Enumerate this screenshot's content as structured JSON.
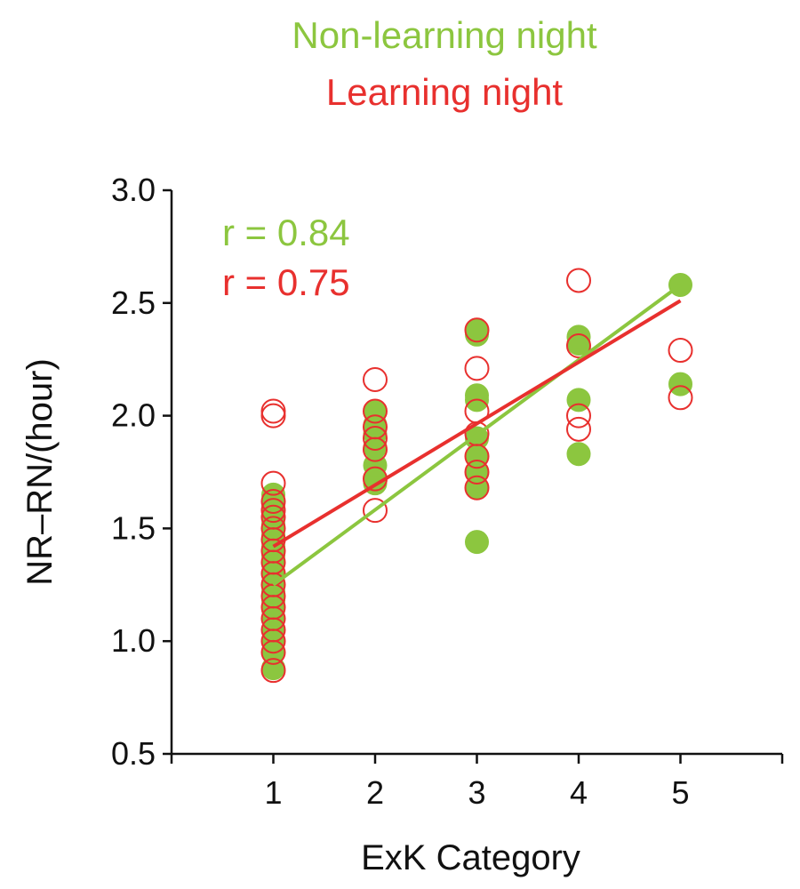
{
  "chart_data": {
    "type": "scatter",
    "title": "",
    "xlabel": "ExK Category",
    "ylabel": "NR–RN/(hour)",
    "xlim": [
      0,
      6
    ],
    "ylim": [
      0.5,
      3.0
    ],
    "xticks": [
      "1",
      "2",
      "3",
      "4",
      "5"
    ],
    "yticks": [
      "0.5",
      "1.0",
      "1.5",
      "2.0",
      "2.5",
      "3.0"
    ],
    "grid": false,
    "legend": {
      "placement": "top-center",
      "entries": [
        {
          "label": "Non-learning night",
          "color": "#8cc63f"
        },
        {
          "label": "Learning night",
          "color": "#e8302e"
        }
      ]
    },
    "annotations": [
      {
        "text": "r = 0.84",
        "color": "#8cc63f"
      },
      {
        "text": "r = 0.75",
        "color": "#e8302e"
      }
    ],
    "series": [
      {
        "name": "Non-learning night",
        "color": "#8cc63f",
        "marker": "filled-circle",
        "points": [
          [
            1,
            0.88
          ],
          [
            1,
            0.95
          ],
          [
            1,
            1.0
          ],
          [
            1,
            1.05
          ],
          [
            1,
            1.1
          ],
          [
            1,
            1.14
          ],
          [
            1,
            1.18
          ],
          [
            1,
            1.22
          ],
          [
            1,
            1.26
          ],
          [
            1,
            1.3
          ],
          [
            1,
            1.34
          ],
          [
            1,
            1.38
          ],
          [
            1,
            1.42
          ],
          [
            1,
            1.47
          ],
          [
            1,
            1.52
          ],
          [
            1,
            1.57
          ],
          [
            1,
            1.6
          ],
          [
            1,
            1.65
          ],
          [
            2,
            1.7
          ],
          [
            2,
            1.72
          ],
          [
            2,
            1.78
          ],
          [
            2,
            1.86
          ],
          [
            2,
            1.92
          ],
          [
            2,
            1.96
          ],
          [
            2,
            2.02
          ],
          [
            3,
            1.44
          ],
          [
            3,
            1.68
          ],
          [
            3,
            1.75
          ],
          [
            3,
            1.82
          ],
          [
            3,
            1.9
          ],
          [
            3,
            2.07
          ],
          [
            3,
            2.09
          ],
          [
            3,
            2.36
          ],
          [
            3,
            2.38
          ],
          [
            4,
            1.83
          ],
          [
            4,
            2.07
          ],
          [
            4,
            2.32
          ],
          [
            4,
            2.35
          ],
          [
            5,
            2.14
          ],
          [
            5,
            2.58
          ]
        ],
        "trend": {
          "x": [
            1,
            5
          ],
          "y": [
            1.25,
            2.58
          ]
        }
      },
      {
        "name": "Learning night",
        "color": "#e8302e",
        "marker": "open-circle",
        "points": [
          [
            1,
            0.87
          ],
          [
            1,
            0.95
          ],
          [
            1,
            1.0
          ],
          [
            1,
            1.05
          ],
          [
            1,
            1.1
          ],
          [
            1,
            1.15
          ],
          [
            1,
            1.2
          ],
          [
            1,
            1.25
          ],
          [
            1,
            1.3
          ],
          [
            1,
            1.35
          ],
          [
            1,
            1.4
          ],
          [
            1,
            1.45
          ],
          [
            1,
            1.5
          ],
          [
            1,
            1.55
          ],
          [
            1,
            1.58
          ],
          [
            1,
            1.62
          ],
          [
            1,
            1.7
          ],
          [
            1,
            2.0
          ],
          [
            1,
            2.02
          ],
          [
            2,
            1.58
          ],
          [
            2,
            1.72
          ],
          [
            2,
            1.85
          ],
          [
            2,
            1.9
          ],
          [
            2,
            1.95
          ],
          [
            2,
            2.02
          ],
          [
            2,
            2.16
          ],
          [
            3,
            1.68
          ],
          [
            3,
            1.75
          ],
          [
            3,
            1.82
          ],
          [
            3,
            1.92
          ],
          [
            3,
            2.02
          ],
          [
            3,
            2.21
          ],
          [
            3,
            2.38
          ],
          [
            4,
            1.94
          ],
          [
            4,
            2.0
          ],
          [
            4,
            2.31
          ],
          [
            4,
            2.6
          ],
          [
            5,
            2.08
          ],
          [
            5,
            2.29
          ]
        ],
        "trend": {
          "x": [
            1,
            5
          ],
          "y": [
            1.42,
            2.51
          ]
        }
      }
    ]
  }
}
